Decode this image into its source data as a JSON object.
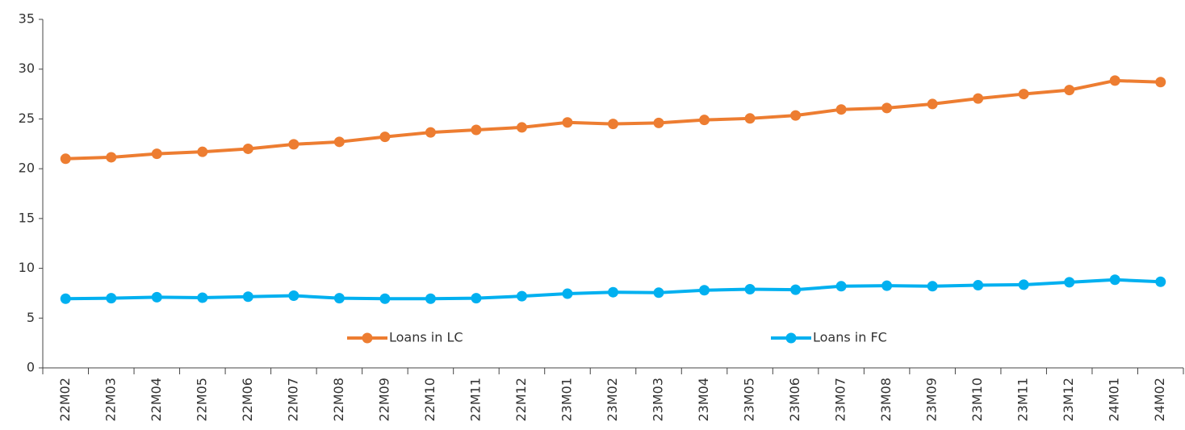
{
  "chart_data": {
    "type": "line",
    "categories": [
      "22M02",
      "22M03",
      "22M04",
      "22M05",
      "22M06",
      "22M07",
      "22M08",
      "22M09",
      "22M10",
      "22M11",
      "22M12",
      "23M01",
      "23M02",
      "23M03",
      "23M04",
      "23M05",
      "23M06",
      "23M07",
      "23M08",
      "23M09",
      "23M10",
      "23M11",
      "23M12",
      "24M01",
      "24M02"
    ],
    "series": [
      {
        "name": "Loans in LC",
        "color": "#ed7d31",
        "values": [
          21.0,
          21.15,
          21.5,
          21.7,
          22.0,
          22.45,
          22.7,
          23.2,
          23.65,
          23.9,
          24.15,
          24.65,
          24.5,
          24.6,
          24.9,
          25.05,
          25.35,
          25.95,
          26.1,
          26.5,
          27.05,
          27.5,
          27.9,
          28.85,
          28.7
        ]
      },
      {
        "name": "Loans in FC",
        "color": "#00b0f0",
        "values": [
          6.95,
          7.0,
          7.1,
          7.05,
          7.15,
          7.25,
          7.0,
          6.95,
          6.95,
          7.0,
          7.2,
          7.45,
          7.6,
          7.55,
          7.8,
          7.9,
          7.85,
          8.2,
          8.25,
          8.2,
          8.3,
          8.35,
          8.6,
          8.85,
          8.65
        ]
      }
    ],
    "ylim": [
      0,
      35
    ],
    "yticks": [
      0,
      5,
      10,
      15,
      20,
      25,
      30,
      35
    ],
    "grid": false,
    "legend": "lower center"
  }
}
